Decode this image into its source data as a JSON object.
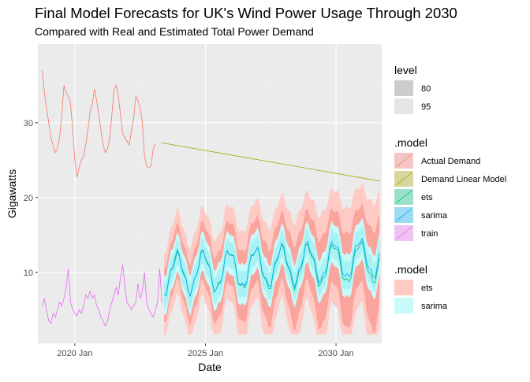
{
  "chart_data": {
    "type": "line",
    "title": "Final Model Forecasts for UK's Wind Power Usage Through 2030",
    "subtitle": "Compared with Real and Estimated Total Power Demand",
    "xlabel": "Date",
    "ylabel": "Gigawatts",
    "x_axis": {
      "ticks": [
        "2020 Jan",
        "2025 Jan",
        "2030 Jan"
      ],
      "range": [
        "2018-08",
        "2031-10"
      ]
    },
    "y_axis": {
      "ticks": [
        10,
        20,
        30
      ],
      "range": [
        0.5,
        40.5
      ]
    },
    "grid": true,
    "legend_position": "right",
    "legends": [
      {
        "title": "level",
        "entries": [
          {
            "label": "80",
            "color": "#cccccc"
          },
          {
            "label": "95",
            "color": "#e5e5e5"
          }
        ]
      },
      {
        "title": ".model",
        "entries": [
          {
            "label": "Actual Demand",
            "color": "#F8766D"
          },
          {
            "label": "Demand Linear Model",
            "color": "#A3A500"
          },
          {
            "label": "ets",
            "color": "#00BF7D"
          },
          {
            "label": "sarima",
            "color": "#00B0F6"
          },
          {
            "label": "train",
            "color": "#E76BF3"
          }
        ]
      },
      {
        "title": ".model",
        "entries": [
          {
            "label": "ets",
            "color": "#FFC9C4"
          },
          {
            "label": "sarima",
            "color": "#C9FAFA"
          }
        ]
      }
    ],
    "series": [
      {
        "name": "Actual Demand",
        "color": "#F8766D",
        "start": "2018-10",
        "values": [
          37,
          34,
          32,
          30,
          28,
          27,
          26,
          26.5,
          28,
          31,
          35,
          34,
          33.5,
          32.5,
          29,
          25,
          22.7,
          24,
          25,
          25.5,
          27,
          29,
          31.5,
          32.5,
          34.5,
          33,
          31,
          29,
          27,
          26,
          26.5,
          28,
          31,
          34.5,
          35,
          33.5,
          31,
          28.5,
          28,
          27.5,
          27,
          29,
          30.5,
          33.5,
          33,
          32,
          30,
          25.5,
          24.2,
          24,
          24.2,
          26.5,
          27.2
        ]
      },
      {
        "name": "Demand Linear Model",
        "color": "#A3A500",
        "points": [
          [
            "2023-05",
            27.3
          ],
          [
            "2031-09",
            22.2
          ]
        ]
      },
      {
        "name": "train",
        "color": "#E76BF3",
        "start": "2018-10",
        "values": [
          5.5,
          6.5,
          5,
          3.5,
          3.2,
          4.5,
          4,
          5,
          6,
          5.5,
          6.5,
          8,
          10.5,
          6,
          5,
          4.5,
          4.2,
          5,
          4.5,
          5.5,
          7,
          6.5,
          7.5,
          6.5,
          7,
          5.5,
          5,
          4,
          3.5,
          2.8,
          3.5,
          5,
          6,
          7,
          8,
          7,
          9.5,
          11,
          8,
          6,
          5.5,
          5,
          5.5,
          6,
          8.5,
          6.5,
          7.5,
          10,
          6,
          5,
          4.5,
          4,
          5,
          6,
          10.5,
          6
        ]
      },
      {
        "name": "ets",
        "color": "#00BF7D",
        "forecast": {
          "start": "2023-06",
          "end": "2031-09",
          "mean": 9.8,
          "trend_per_year": 0.2,
          "amplitude": 2.6,
          "peak_month": 12,
          "noise": 0.6
        }
      },
      {
        "name": "sarima",
        "color": "#00B0F6",
        "forecast": {
          "start": "2023-06",
          "end": "2031-09",
          "mean": 9.6,
          "trend_per_year": 0.3,
          "amplitude": 2.5,
          "peak_month": 12,
          "noise": 0.6
        }
      }
    ],
    "intervals": [
      {
        "model": "ets",
        "level": 95,
        "color": "#FFC9C4",
        "half_width_start": 5.5,
        "half_width_end": 10.5
      },
      {
        "model": "ets",
        "level": 80,
        "color": "#F9A49C",
        "half_width_start": 3.6,
        "half_width_end": 6.8
      },
      {
        "model": "sarima",
        "level": 95,
        "color": "#C9FAFA",
        "half_width_start": 2.6,
        "half_width_end": 2.9
      },
      {
        "model": "sarima",
        "level": 80,
        "color": "#A8F1F4",
        "half_width_start": 1.7,
        "half_width_end": 1.9
      }
    ]
  }
}
